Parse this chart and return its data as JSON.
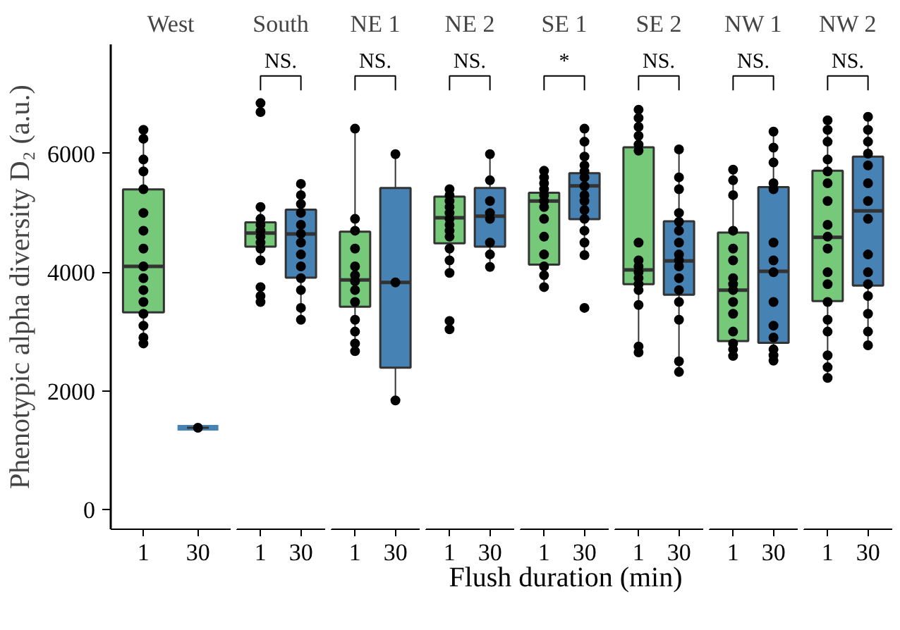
{
  "chart_data": [
    {
      "type": "box",
      "title": "West",
      "categories": [
        "1",
        "30"
      ],
      "ylim": [
        -330,
        7840
      ],
      "yticks": [
        0,
        2000,
        4000,
        6000
      ],
      "ylabel": "Phenotypic alpha diversity D₂ (a.u.)",
      "grid": false,
      "colors": [
        "#77c97a",
        "#4682b4"
      ],
      "boxes": [
        {
          "low": 2770,
          "q1": 3325,
          "median": 4100,
          "q3": 5396,
          "high": 6420
        },
        {
          "low": 1380,
          "q1": 1380,
          "median": 1380,
          "q3": 1380,
          "high": 1380
        }
      ],
      "series": [
        {
          "type": "scatter",
          "color": "#000000",
          "x": [
            "1",
            "1",
            "1",
            "1",
            "1",
            "1",
            "1",
            "1",
            "1",
            "1",
            "1",
            "1",
            "1",
            "1",
            "1",
            "1",
            "30"
          ],
          "values": [
            6400,
            6250,
            5900,
            5700,
            5400,
            5000,
            4700,
            4400,
            4100,
            3900,
            3700,
            3500,
            3300,
            3100,
            2900,
            2800,
            1380
          ]
        }
      ]
    },
    {
      "type": "box",
      "title": "South",
      "categories": [
        "1",
        "30"
      ],
      "ylim": [
        -330,
        7840
      ],
      "tick_labels": "x",
      "grid": false,
      "colors": [
        "#77c97a",
        "#4682b4"
      ],
      "annotations": [
        "NS."
      ],
      "boxes": [
        {
          "low": 4200,
          "q1": 4431,
          "median": 4660,
          "q3": 4842,
          "high": 5100
        },
        {
          "low": 3200,
          "q1": 3910,
          "median": 4645,
          "q3": 5055,
          "high": 5490
        }
      ],
      "series": [
        {
          "type": "scatter",
          "color": "#000000",
          "x": [
            "1",
            "1",
            "1",
            "1",
            "1",
            "1",
            "1",
            "1",
            "1",
            "1",
            "1",
            "1",
            "1",
            "1",
            "30",
            "30",
            "30",
            "30",
            "30",
            "30",
            "30",
            "30",
            "30",
            "30",
            "30",
            "30",
            "30"
          ],
          "values": [
            6850,
            6700,
            5100,
            4900,
            4800,
            4700,
            null,
            4600,
            4500,
            4400,
            4200,
            3750,
            3600,
            3500,
            5490,
            5300,
            5150,
            5000,
            4800,
            4650,
            4500,
            4300,
            4100,
            3900,
            3700,
            3400,
            3200
          ]
        }
      ]
    },
    {
      "type": "box",
      "title": "NE 1",
      "categories": [
        "1",
        "30"
      ],
      "ylim": [
        -330,
        7840
      ],
      "tick_labels": "x",
      "grid": false,
      "colors": [
        "#77c97a",
        "#4682b4"
      ],
      "annotations": [
        "NS."
      ],
      "boxes": [
        {
          "low": 2670,
          "q1": 3420,
          "median": 3870,
          "q3": 4683,
          "high": 6420
        },
        {
          "low": 1840,
          "q1": 2393,
          "median": 3830,
          "q3": 5420,
          "high": 5990
        }
      ],
      "series": [
        {
          "type": "scatter",
          "color": "#000000",
          "x": [
            "1",
            "1",
            "1",
            "1",
            "1",
            "1",
            "1",
            "1",
            "1",
            "1",
            "1",
            "1",
            "1",
            "1",
            "30",
            "30",
            "30",
            "30"
          ],
          "values": [
            6420,
            null,
            4900,
            4700,
            4400,
            4100,
            3950,
            3850,
            3700,
            3500,
            3200,
            3000,
            2800,
            2670,
            5990,
            3830,
            null,
            1840
          ]
        }
      ]
    },
    {
      "type": "box",
      "title": "NE 2",
      "categories": [
        "1",
        "30"
      ],
      "ylim": [
        -330,
        7840
      ],
      "tick_labels": "x",
      "grid": false,
      "colors": [
        "#77c97a",
        "#4682b4"
      ],
      "annotations": [
        "NS."
      ],
      "boxes": [
        {
          "low": 3990,
          "q1": 4487,
          "median": 4920,
          "q3": 5275,
          "high": 5395
        },
        {
          "low": 4090,
          "q1": 4431,
          "median": 4945,
          "q3": 5420,
          "high": 5990
        }
      ],
      "series": [
        {
          "type": "scatter",
          "color": "#000000",
          "x": [
            "1",
            "1",
            "1",
            "1",
            "1",
            "1",
            "1",
            "1",
            "1",
            "1",
            "1",
            "1",
            "1",
            "1",
            "30",
            "30",
            "30",
            "30",
            "30",
            "30",
            "30",
            "30"
          ],
          "values": [
            5400,
            5300,
            5200,
            5100,
            5000,
            4900,
            4800,
            4700,
            4600,
            4400,
            4200,
            3990,
            3180,
            3040,
            5990,
            5550,
            5200,
            5000,
            4900,
            4500,
            4300,
            4090
          ]
        }
      ]
    },
    {
      "type": "box",
      "title": "SE 1",
      "categories": [
        "1",
        "30"
      ],
      "ylim": [
        -330,
        7840
      ],
      "xlabel": "Flush duration (min)",
      "tick_labels": "x",
      "grid": false,
      "colors": [
        "#77c97a",
        "#4682b4"
      ],
      "annotations": [
        "*"
      ],
      "boxes": [
        {
          "low": 3750,
          "q1": 4130,
          "median": 5200,
          "q3": 5340,
          "high": 5710
        },
        {
          "low": 4290,
          "q1": 4895,
          "median": 5455,
          "q3": 5670,
          "high": 6420
        }
      ],
      "series": [
        {
          "type": "scatter",
          "color": "#000000",
          "x": [
            "1",
            "1",
            "1",
            "1",
            "1",
            "1",
            "1",
            "1",
            "1",
            "1",
            "1",
            "1",
            "1",
            "30",
            "30",
            "30",
            "30",
            "30",
            "30",
            "30",
            "30",
            "30",
            "30",
            "30",
            "30",
            "30",
            "30",
            "30"
          ],
          "values": [
            5710,
            5600,
            5500,
            5400,
            5300,
            5200,
            5100,
            4900,
            4600,
            4300,
            4100,
            3950,
            3750,
            6420,
            6200,
            5950,
            5800,
            5700,
            5600,
            5450,
            5300,
            5200,
            5050,
            4900,
            4700,
            4500,
            4290,
            3400
          ]
        }
      ]
    },
    {
      "type": "box",
      "title": "SE 2",
      "categories": [
        "1",
        "30"
      ],
      "ylim": [
        -330,
        7840
      ],
      "tick_labels": "x",
      "grid": false,
      "colors": [
        "#77c97a",
        "#4682b4"
      ],
      "annotations": [
        "NS."
      ],
      "boxes": [
        {
          "low": 2650,
          "q1": 3800,
          "median": 4040,
          "q3": 6105,
          "high": 6740
        },
        {
          "low": 2315,
          "q1": 3620,
          "median": 4190,
          "q3": 4860,
          "high": 6070
        }
      ],
      "series": [
        {
          "type": "scatter",
          "color": "#000000",
          "x": [
            "1",
            "1",
            "1",
            "1",
            "1",
            "1",
            "1",
            "1",
            "1",
            "1",
            "1",
            "1",
            "1",
            "1",
            "1",
            "1",
            "30",
            "30",
            "30",
            "30",
            "30",
            "30",
            "30",
            "30",
            "30",
            "30",
            "30",
            "30",
            "30",
            "30",
            "30",
            "30"
          ],
          "values": [
            6740,
            6600,
            6450,
            6300,
            6150,
            6050,
            4500,
            4200,
            4100,
            4000,
            3900,
            3800,
            3700,
            3450,
            2750,
            2650,
            6070,
            5600,
            5400,
            5000,
            4850,
            4700,
            4500,
            4300,
            4200,
            4100,
            3900,
            3700,
            3500,
            3200,
            2500,
            2320
          ]
        }
      ]
    },
    {
      "type": "box",
      "title": "NW 1",
      "categories": [
        "1",
        "30"
      ],
      "ylim": [
        -330,
        7840
      ],
      "tick_labels": "x",
      "grid": false,
      "colors": [
        "#77c97a",
        "#4682b4"
      ],
      "annotations": [
        "NS."
      ],
      "boxes": [
        {
          "low": 2590,
          "q1": 2840,
          "median": 3700,
          "q3": 4670,
          "high": 5730
        },
        {
          "low": 2510,
          "q1": 2810,
          "median": 4015,
          "q3": 5435,
          "high": 6370
        }
      ],
      "series": [
        {
          "type": "scatter",
          "color": "#000000",
          "x": [
            "1",
            "1",
            "1",
            "1",
            "1",
            "1",
            "1",
            "1",
            "1",
            "1",
            "1",
            "1",
            "1",
            "1",
            "1",
            "30",
            "30",
            "30",
            "30",
            "30",
            "30",
            "30",
            "30",
            "30",
            "30",
            "30",
            "30",
            "30",
            "30"
          ],
          "values": [
            5730,
            5550,
            5300,
            4700,
            4400,
            4200,
            3900,
            3800,
            3700,
            3500,
            3300,
            3000,
            2800,
            2700,
            2590,
            6370,
            6100,
            5850,
            5500,
            5400,
            4500,
            4200,
            4000,
            3500,
            3100,
            2900,
            2700,
            2600,
            2510
          ]
        }
      ]
    },
    {
      "type": "box",
      "title": "NW 2",
      "categories": [
        "1",
        "30"
      ],
      "ylim": [
        -330,
        7840
      ],
      "tick_labels": "x",
      "grid": false,
      "colors": [
        "#77c97a",
        "#4682b4"
      ],
      "annotations": [
        "NS."
      ],
      "boxes": [
        {
          "low": 2220,
          "q1": 3515,
          "median": 4590,
          "q3": 5710,
          "high": 6560
        },
        {
          "low": 2765,
          "q1": 3775,
          "median": 5035,
          "q3": 5950,
          "high": 6620
        }
      ],
      "series": [
        {
          "type": "scatter",
          "color": "#000000",
          "x": [
            "1",
            "1",
            "1",
            "1",
            "1",
            "1",
            "1",
            "1",
            "1",
            "1",
            "1",
            "1",
            "1",
            "1",
            "1",
            "1",
            "1",
            "1",
            "30",
            "30",
            "30",
            "30",
            "30",
            "30",
            "30",
            "30",
            "30",
            "30",
            "30",
            "30",
            "30",
            "30",
            "30"
          ],
          "values": [
            6560,
            6400,
            6200,
            5900,
            5700,
            5500,
            5200,
            4800,
            4600,
            4400,
            4000,
            3800,
            3500,
            3200,
            3000,
            2600,
            2400,
            2220,
            6620,
            6400,
            6200,
            6000,
            5800,
            5500,
            5200,
            4900,
            4300,
            4000,
            3800,
            3600,
            3300,
            3000,
            2770
          ]
        }
      ]
    }
  ]
}
